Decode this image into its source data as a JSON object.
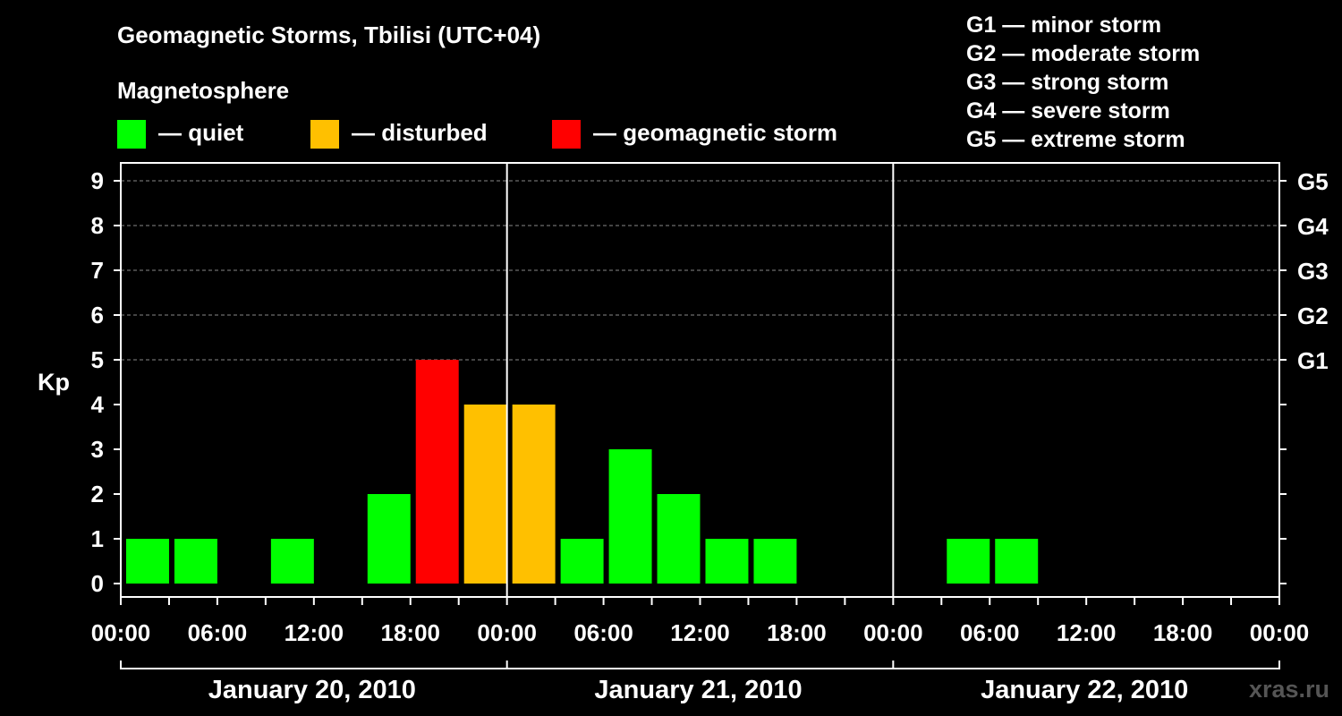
{
  "header": {
    "title": "Geomagnetic Storms, Tbilisi (UTC+04)",
    "magnetosphere_label": "Magnetosphere"
  },
  "legend": [
    {
      "label": "— quiet",
      "color": "#00ff00"
    },
    {
      "label": "— disturbed",
      "color": "#ffc000"
    },
    {
      "label": "— geomagnetic storm",
      "color": "#ff0000"
    }
  ],
  "storm_scale": [
    "G1 — minor storm",
    "G2 — moderate storm",
    "G3 — strong storm",
    "G4 — severe storm",
    "G5 — extreme storm"
  ],
  "watermark": "xras.ru",
  "chart_data": {
    "type": "bar",
    "ylabel": "Kp",
    "ylim": [
      0,
      9
    ],
    "y_ticks": [
      "0",
      "1",
      "2",
      "3",
      "4",
      "5",
      "6",
      "7",
      "8",
      "9"
    ],
    "right_ticks": [
      {
        "kp": 5,
        "label": "G1"
      },
      {
        "kp": 6,
        "label": "G2"
      },
      {
        "kp": 7,
        "label": "G3"
      },
      {
        "kp": 8,
        "label": "G4"
      },
      {
        "kp": 9,
        "label": "G5"
      }
    ],
    "x_ticks": [
      "00:00",
      "06:00",
      "12:00",
      "18:00",
      "00:00",
      "06:00",
      "12:00",
      "18:00",
      "00:00",
      "06:00",
      "12:00",
      "18:00",
      "00:00"
    ],
    "days": [
      "January 20, 2010",
      "January 21, 2010",
      "January 22, 2010"
    ],
    "interval_hours": 3,
    "grid": "dashed horizontal at Kp 5-9",
    "colors": {
      "quiet": "#00ff00",
      "disturbed": "#ffc000",
      "storm": "#ff0000"
    },
    "bars": [
      {
        "start": "2010-01-20 00:00",
        "kp": 1,
        "status": "quiet"
      },
      {
        "start": "2010-01-20 03:00",
        "kp": 1,
        "status": "quiet"
      },
      {
        "start": "2010-01-20 06:00",
        "kp": 0,
        "status": "quiet"
      },
      {
        "start": "2010-01-20 09:00",
        "kp": 1,
        "status": "quiet"
      },
      {
        "start": "2010-01-20 12:00",
        "kp": 0,
        "status": "quiet"
      },
      {
        "start": "2010-01-20 15:00",
        "kp": 2,
        "status": "quiet"
      },
      {
        "start": "2010-01-20 18:00",
        "kp": 5,
        "status": "storm"
      },
      {
        "start": "2010-01-20 21:00",
        "kp": 4,
        "status": "disturbed"
      },
      {
        "start": "2010-01-21 00:00",
        "kp": 4,
        "status": "disturbed"
      },
      {
        "start": "2010-01-21 03:00",
        "kp": 1,
        "status": "quiet"
      },
      {
        "start": "2010-01-21 06:00",
        "kp": 3,
        "status": "quiet"
      },
      {
        "start": "2010-01-21 09:00",
        "kp": 2,
        "status": "quiet"
      },
      {
        "start": "2010-01-21 12:00",
        "kp": 1,
        "status": "quiet"
      },
      {
        "start": "2010-01-21 15:00",
        "kp": 1,
        "status": "quiet"
      },
      {
        "start": "2010-01-21 18:00",
        "kp": 0,
        "status": "quiet"
      },
      {
        "start": "2010-01-21 21:00",
        "kp": 0,
        "status": "quiet"
      },
      {
        "start": "2010-01-22 00:00",
        "kp": 0,
        "status": "quiet"
      },
      {
        "start": "2010-01-22 03:00",
        "kp": 1,
        "status": "quiet"
      },
      {
        "start": "2010-01-22 06:00",
        "kp": 1,
        "status": "quiet"
      },
      {
        "start": "2010-01-22 09:00",
        "kp": 0,
        "status": "quiet"
      },
      {
        "start": "2010-01-22 12:00",
        "kp": 0,
        "status": "quiet"
      },
      {
        "start": "2010-01-22 15:00",
        "kp": 0,
        "status": "quiet"
      },
      {
        "start": "2010-01-22 18:00",
        "kp": 0,
        "status": "quiet"
      },
      {
        "start": "2010-01-22 21:00",
        "kp": 0,
        "status": "quiet"
      }
    ]
  }
}
